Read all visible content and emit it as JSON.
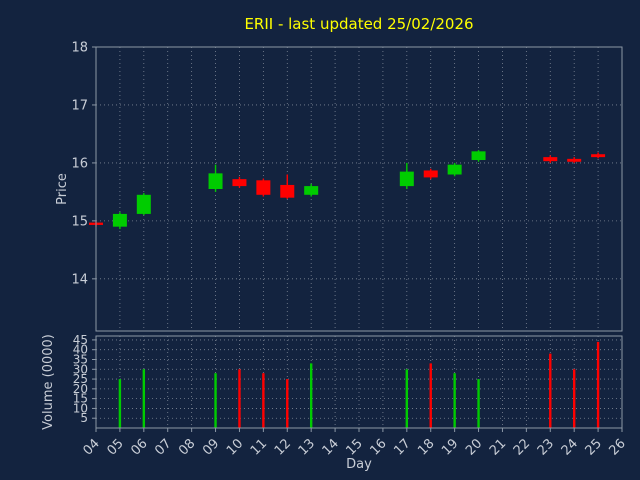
{
  "figure": {
    "background": "#13233F",
    "grid_color": "#FFFFFF",
    "spine_color": "#8C98A6",
    "text_color": "#C8CDD6",
    "title_color": "#FFFF00"
  },
  "chart_data": {
    "type": "candlestick",
    "title": "ERII - last updated 25/02/2026",
    "xlabel": "Day",
    "ylabel_price": "Price",
    "ylabel_volume": "Volume (0000)",
    "legend": "none",
    "grid": "dotted",
    "x_categories": [
      "04",
      "05",
      "06",
      "07",
      "08",
      "09",
      "10",
      "11",
      "12",
      "13",
      "14",
      "15",
      "16",
      "17",
      "18",
      "19",
      "20",
      "21",
      "22",
      "23",
      "24",
      "25",
      "26"
    ],
    "price_ylim": [
      13.1,
      18.0
    ],
    "price_ticks": [
      18,
      17,
      16,
      15,
      14
    ],
    "volume_ylim": [
      0,
      47
    ],
    "volume_ticks": [
      45,
      40,
      35,
      30,
      25,
      20,
      15,
      10,
      5
    ],
    "colors": {
      "up": "#00CC00",
      "down": "#FF0000"
    },
    "candles": [
      {
        "day": "04",
        "open": 14.97,
        "high": 14.99,
        "low": 14.9,
        "close": 14.93
      },
      {
        "day": "05",
        "open": 14.9,
        "high": 15.15,
        "low": 14.86,
        "close": 15.12
      },
      {
        "day": "06",
        "open": 15.12,
        "high": 15.48,
        "low": 15.1,
        "close": 15.45
      },
      {
        "day": "09",
        "open": 15.55,
        "high": 15.97,
        "low": 15.5,
        "close": 15.82
      },
      {
        "day": "10",
        "open": 15.72,
        "high": 15.76,
        "low": 15.57,
        "close": 15.6
      },
      {
        "day": "11",
        "open": 15.7,
        "high": 15.73,
        "low": 15.42,
        "close": 15.45
      },
      {
        "day": "12",
        "open": 15.62,
        "high": 15.8,
        "low": 15.38,
        "close": 15.4
      },
      {
        "day": "13",
        "open": 15.45,
        "high": 15.64,
        "low": 15.42,
        "close": 15.6
      },
      {
        "day": "17",
        "open": 15.6,
        "high": 16.0,
        "low": 15.55,
        "close": 15.85
      },
      {
        "day": "18",
        "open": 15.87,
        "high": 15.9,
        "low": 15.72,
        "close": 15.75
      },
      {
        "day": "19",
        "open": 15.8,
        "high": 16.0,
        "low": 15.77,
        "close": 15.97
      },
      {
        "day": "20",
        "open": 16.05,
        "high": 16.22,
        "low": 16.02,
        "close": 16.2
      },
      {
        "day": "23",
        "open": 16.1,
        "high": 16.13,
        "low": 16.0,
        "close": 16.03
      },
      {
        "day": "24",
        "open": 16.07,
        "high": 16.1,
        "low": 16.0,
        "close": 16.02
      },
      {
        "day": "25",
        "open": 16.15,
        "high": 16.18,
        "low": 16.08,
        "close": 16.1
      }
    ],
    "volumes": [
      {
        "day": "05",
        "value": 25,
        "direction": "up"
      },
      {
        "day": "06",
        "value": 30,
        "direction": "up"
      },
      {
        "day": "09",
        "value": 28,
        "direction": "up"
      },
      {
        "day": "10",
        "value": 30,
        "direction": "down"
      },
      {
        "day": "11",
        "value": 28,
        "direction": "down"
      },
      {
        "day": "12",
        "value": 25,
        "direction": "down"
      },
      {
        "day": "13",
        "value": 33,
        "direction": "up"
      },
      {
        "day": "17",
        "value": 30,
        "direction": "up"
      },
      {
        "day": "18",
        "value": 33,
        "direction": "down"
      },
      {
        "day": "19",
        "value": 28,
        "direction": "up"
      },
      {
        "day": "20",
        "value": 25,
        "direction": "up"
      },
      {
        "day": "23",
        "value": 38,
        "direction": "down"
      },
      {
        "day": "24",
        "value": 30,
        "direction": "down"
      },
      {
        "day": "25",
        "value": 44,
        "direction": "down"
      }
    ]
  }
}
